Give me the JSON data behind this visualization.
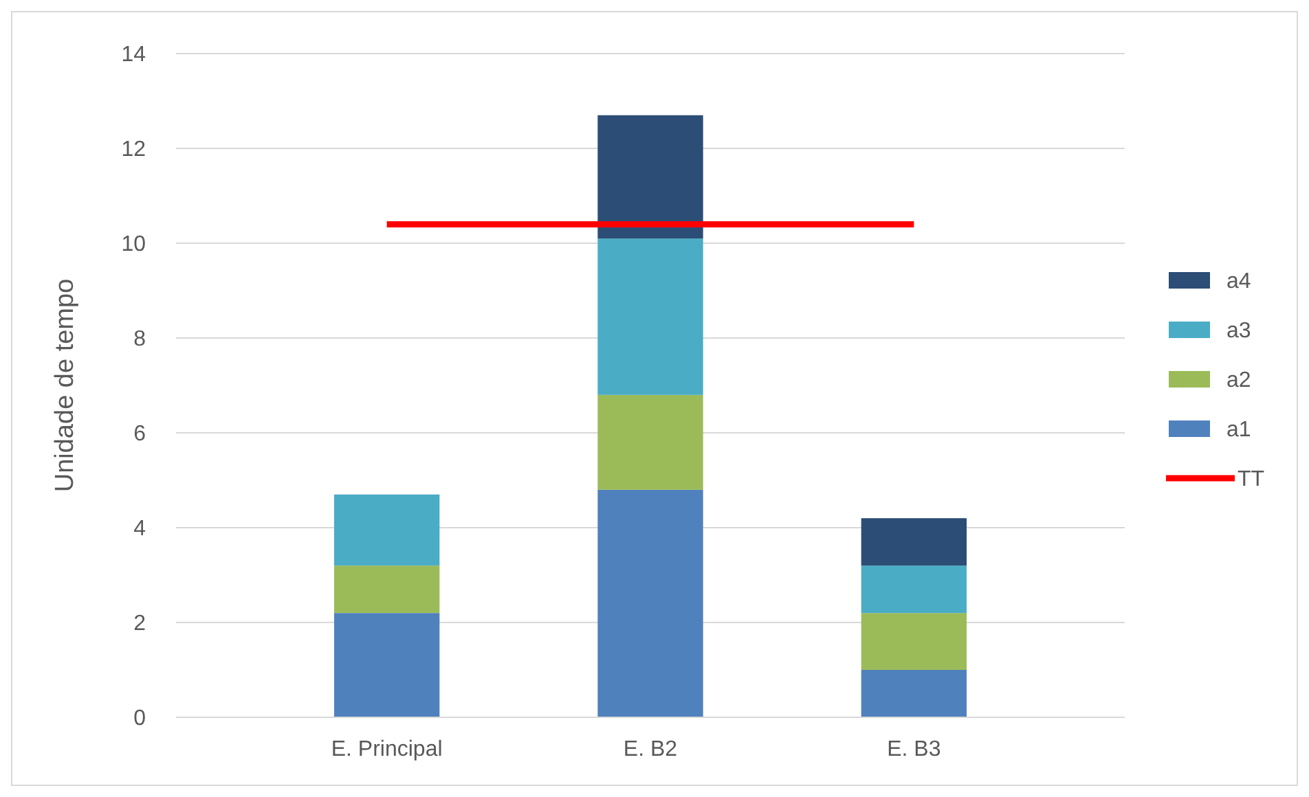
{
  "chart_data": {
    "type": "bar",
    "stacked": true,
    "ylabel": "Unidade de tempo",
    "categories": [
      "E. Principal",
      "E. B2",
      "E. B3"
    ],
    "series": [
      {
        "name": "a1",
        "color": "#4f81bd",
        "values": [
          2.2,
          4.8,
          1.0
        ]
      },
      {
        "name": "a2",
        "color": "#9bbb59",
        "values": [
          1.0,
          2.0,
          1.2
        ]
      },
      {
        "name": "a3",
        "color": "#4bacc6",
        "values": [
          1.5,
          3.3,
          1.0
        ]
      },
      {
        "name": "a4",
        "color": "#2c4d75",
        "values": [
          0,
          2.6,
          1.0
        ]
      },
      {
        "name": "TT",
        "type": "line",
        "color": "#ff0000",
        "values": [
          10.4,
          10.4,
          10.4
        ]
      }
    ],
    "ylim": [
      0,
      14
    ],
    "yticks": [
      0,
      2,
      4,
      6,
      8,
      10,
      12,
      14
    ],
    "grid": "y",
    "legend": "right",
    "marker": "none",
    "line_style": "solid"
  }
}
